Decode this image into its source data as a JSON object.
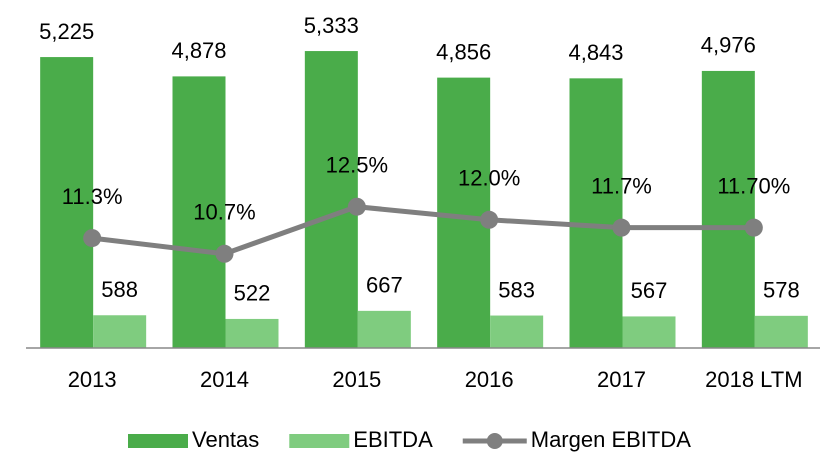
{
  "chart_data": {
    "type": "bar",
    "categories": [
      "2013",
      "2014",
      "2015",
      "2016",
      "2017",
      "2018 LTM"
    ],
    "series": [
      {
        "name": "Ventas",
        "color": "#4aac4a",
        "values": [
          5225,
          4878,
          5333,
          4856,
          4843,
          4976
        ],
        "value_labels": [
          "5,225",
          "4,878",
          "5,333",
          "4,856",
          "4,843",
          "4,976"
        ]
      },
      {
        "name": "EBITDA",
        "color": "#7fcc7f",
        "values": [
          588,
          522,
          667,
          583,
          567,
          578
        ]
      },
      {
        "name": "Margen EBITDA",
        "type": "line",
        "axis": "y2",
        "color": "#7f7f7f",
        "values": [
          11.3,
          10.7,
          12.5,
          12.0,
          11.7,
          11.7
        ],
        "value_labels": [
          "11.3%",
          "10.7%",
          "12.5%",
          "12.0%",
          "11.7%",
          "11.70%"
        ]
      }
    ],
    "ylim": [
      0,
      6250
    ],
    "y2lim": [
      7.1,
      20.4
    ],
    "legend": "bottom"
  }
}
